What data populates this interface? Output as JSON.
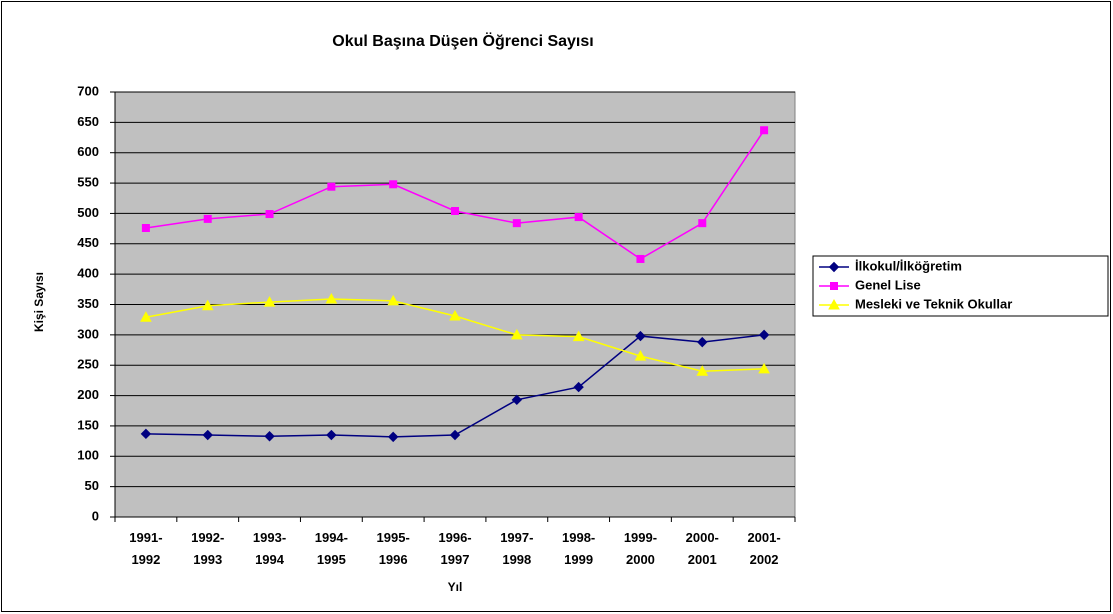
{
  "chart_data": {
    "type": "line",
    "title": "Okul Başına Düşen Öğrenci Sayısı",
    "x_label": "Yıl",
    "y_label": "Kişi Sayısı",
    "categories": [
      "1991-1992",
      "1992-1993",
      "1993-1994",
      "1994-1995",
      "1995-1996",
      "1996-1997",
      "1997-1998",
      "1998-1999",
      "1999-2000",
      "2000-2001",
      "2001-2002"
    ],
    "series": [
      {
        "name": "İlkokul/İlköğretim",
        "color": "#000080",
        "marker": "diamond",
        "values": [
          137,
          135,
          133,
          135,
          132,
          135,
          193,
          214,
          298,
          288,
          300
        ]
      },
      {
        "name": "Genel Lise",
        "color": "#ff00ff",
        "marker": "square",
        "values": [
          476,
          491,
          499,
          544,
          548,
          504,
          484,
          494,
          425,
          484,
          637
        ]
      },
      {
        "name": "Mesleki ve Teknik Okullar",
        "color": "#ffff00",
        "marker": "triangle",
        "values": [
          329,
          348,
          354,
          359,
          356,
          331,
          300,
          297,
          265,
          240,
          244
        ]
      }
    ],
    "ylim": [
      0,
      700
    ],
    "yticks": [
      0,
      50,
      100,
      150,
      200,
      250,
      300,
      350,
      400,
      450,
      500,
      550,
      600,
      650,
      700
    ],
    "grid": true,
    "plot_background": "#c0c0c0",
    "legend": "right"
  }
}
